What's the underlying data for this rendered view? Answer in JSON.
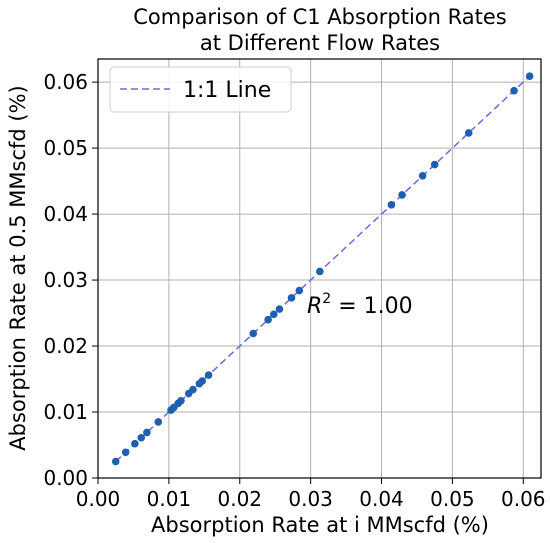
{
  "chart_data": {
    "type": "scatter",
    "title_line1": "Comparison of C1 Absorption Rates",
    "title_line2": "at Different Flow Rates",
    "xlabel": "Absorption Rate at i MMscfd (%)",
    "ylabel": "Absorption Rate at 0.5 MMscfd (%)",
    "xlim": [
      0.0,
      0.0625
    ],
    "ylim": [
      0.0,
      0.0635
    ],
    "xticks": [
      0.0,
      0.01,
      0.02,
      0.03,
      0.04,
      0.05,
      0.06
    ],
    "xtick_labels": [
      "0.00",
      "0.01",
      "0.02",
      "0.03",
      "0.04",
      "0.05",
      "0.06"
    ],
    "yticks": [
      0.0,
      0.01,
      0.02,
      0.03,
      0.04,
      0.05,
      0.06
    ],
    "ytick_labels": [
      "0.00",
      "0.01",
      "0.02",
      "0.03",
      "0.04",
      "0.05",
      "0.06"
    ],
    "grid": true,
    "legend_position": "top-left",
    "legend_label": "1:1 Line",
    "line_color": "#6a6ade",
    "point_color": "#1f5fb0",
    "annotation": {
      "base": "R",
      "sup": "2",
      "rest": " = 1.00"
    },
    "x": [
      0.0025,
      0.0039,
      0.0052,
      0.0061,
      0.0069,
      0.0085,
      0.0103,
      0.0107,
      0.0113,
      0.0117,
      0.0128,
      0.0134,
      0.0143,
      0.0147,
      0.0156,
      0.0219,
      0.024,
      0.0248,
      0.0256,
      0.0273,
      0.0284,
      0.0313,
      0.0414,
      0.0429,
      0.0458,
      0.0475,
      0.0523,
      0.0587,
      0.0609
    ],
    "y": [
      0.0025,
      0.0039,
      0.0052,
      0.0061,
      0.0069,
      0.0085,
      0.0103,
      0.0107,
      0.0113,
      0.0117,
      0.0128,
      0.0134,
      0.0143,
      0.0147,
      0.0156,
      0.0219,
      0.024,
      0.0248,
      0.0256,
      0.0273,
      0.0284,
      0.0313,
      0.0414,
      0.0429,
      0.0458,
      0.0475,
      0.0523,
      0.0587,
      0.0609
    ]
  }
}
